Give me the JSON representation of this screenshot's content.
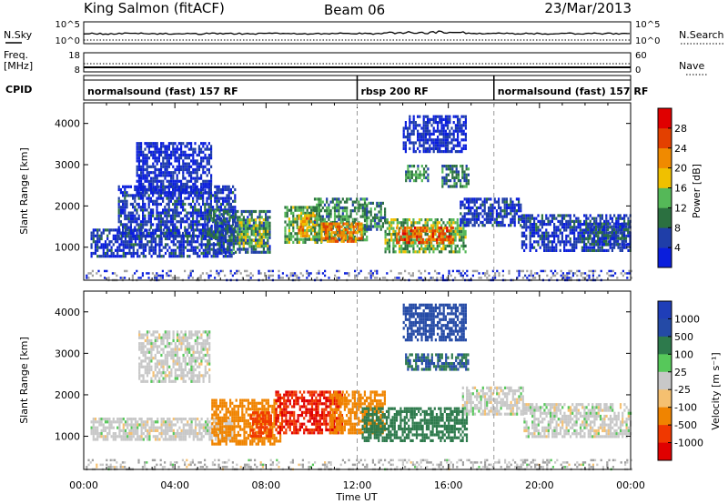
{
  "header": {
    "station": "King Salmon (fitACF)",
    "beam": "Beam 06",
    "date": "23/Mar/2013"
  },
  "top_panels": {
    "nsky_label": "N.Sky",
    "nsky_top_tick": "10^5",
    "nsky_bottom_tick": "10^0",
    "nsearch_label": "N.Search",
    "nsearch_top_tick": "10^5",
    "nsearch_bottom_tick": "10^0",
    "freq_label": "Freq.",
    "freq_unit": "[MHz]",
    "freq_top_tick": "18",
    "freq_bottom_tick": "8",
    "nave_label": "Nave",
    "nave_top_tick": "60",
    "nave_bottom_tick": "0",
    "cpid_label": "CPID"
  },
  "cpid_segments": [
    {
      "label": "normalsound (fast) 157 RF",
      "start_hour": 0
    },
    {
      "label": "rbsp 200 RF",
      "start_hour": 12
    },
    {
      "label": "normalsound (fast) 157 RF",
      "start_hour": 18
    }
  ],
  "colors": {
    "power_scale": [
      "#0a1edc",
      "#1f3ea8",
      "#2b7040",
      "#55b858",
      "#f0c000",
      "#f08a00",
      "#e34000",
      "#e00000"
    ],
    "velocity_scale": [
      "#e00000",
      "#f03800",
      "#f08400",
      "#f5c070",
      "#c8c8c8",
      "#56c85a",
      "#2d7a4c",
      "#244aa6",
      "#1f3eb8"
    ],
    "noise": "#a0a0a0"
  },
  "power_colorbar": {
    "label": "Power [dB]",
    "ticks": [
      "4",
      "8",
      "12",
      "16",
      "20",
      "24",
      "28"
    ]
  },
  "velocity_colorbar": {
    "label": "Velocity [m s⁻¹]",
    "ticks": [
      "-1000",
      "-500",
      "-100",
      "-25",
      "25",
      "100",
      "500",
      "1000"
    ]
  },
  "chart_data": [
    {
      "type": "heatmap",
      "title": "King Salmon (fitACF) Beam 06 23/Mar/2013",
      "xlabel": "",
      "ylabel": "Slant Range [km]",
      "ylim": [
        200,
        4500
      ],
      "xlim_hours": [
        0,
        24
      ],
      "colorbar": "Power [dB]",
      "color_range": [
        2,
        30
      ],
      "yticks": [
        "1000",
        "2000",
        "3000",
        "4000"
      ],
      "regions": [
        {
          "t0": 0.3,
          "t1": 6.6,
          "r0": 800,
          "r1": 1450,
          "value": 6
        },
        {
          "t0": 1.5,
          "t1": 6.6,
          "r0": 1300,
          "r1": 2500,
          "value": 6
        },
        {
          "t0": 2.3,
          "t1": 5.6,
          "r0": 2300,
          "r1": 3550,
          "value": 5
        },
        {
          "t0": 5.4,
          "t1": 8.2,
          "r0": 850,
          "r1": 1900,
          "value": 9
        },
        {
          "t0": 6.8,
          "t1": 8.1,
          "r0": 1000,
          "r1": 1700,
          "value": 15
        },
        {
          "t0": 8.8,
          "t1": 10.4,
          "r0": 1100,
          "r1": 2000,
          "value": 13
        },
        {
          "t0": 9.4,
          "t1": 10.2,
          "r0": 1300,
          "r1": 1800,
          "value": 20
        },
        {
          "t0": 10.1,
          "t1": 12.4,
          "r0": 1200,
          "r1": 2200,
          "value": 12
        },
        {
          "t0": 10.4,
          "t1": 12.2,
          "r0": 1150,
          "r1": 1600,
          "value": 22
        },
        {
          "t0": 12.3,
          "t1": 13.2,
          "r0": 1400,
          "r1": 2100,
          "value": 10
        },
        {
          "t0": 13.2,
          "t1": 16.8,
          "r0": 900,
          "r1": 1700,
          "value": 14
        },
        {
          "t0": 13.7,
          "t1": 16.2,
          "r0": 1100,
          "r1": 1500,
          "value": 24
        },
        {
          "t0": 14.1,
          "t1": 15.1,
          "r0": 2600,
          "r1": 3000,
          "value": 12
        },
        {
          "t0": 15.7,
          "t1": 16.9,
          "r0": 2500,
          "r1": 3000,
          "value": 10
        },
        {
          "t0": 16.5,
          "t1": 19.2,
          "r0": 1500,
          "r1": 2200,
          "value": 6
        },
        {
          "t0": 19.2,
          "t1": 24.0,
          "r0": 900,
          "r1": 1800,
          "value": 6
        },
        {
          "t0": 22.0,
          "t1": 24.0,
          "r0": 1100,
          "r1": 1600,
          "value": 8
        },
        {
          "t0": 14.0,
          "t1": 16.8,
          "r0": 3300,
          "r1": 4200,
          "value": 5
        },
        {
          "t0": 0.0,
          "t1": 24.0,
          "r0": 200,
          "r1": 450,
          "value": 2
        }
      ]
    },
    {
      "type": "heatmap",
      "xlabel": "Time UT",
      "ylabel": "Slant Range [km]",
      "ylim": [
        200,
        4500
      ],
      "xlim_hours": [
        0,
        24
      ],
      "colorbar": "Velocity [m s⁻¹]",
      "xticks": [
        "00:00",
        "04:00",
        "08:00",
        "12:00",
        "16:00",
        "20:00",
        "00:00"
      ],
      "yticks": [
        "1000",
        "2000",
        "3000",
        "4000"
      ],
      "regions": [
        {
          "t0": 0.3,
          "t1": 6.6,
          "r0": 900,
          "r1": 1450,
          "value": 0
        },
        {
          "t0": 2.4,
          "t1": 5.5,
          "r0": 2300,
          "r1": 3550,
          "value": 0
        },
        {
          "t0": 5.6,
          "t1": 8.6,
          "r0": 800,
          "r1": 1900,
          "value": -300
        },
        {
          "t0": 7.3,
          "t1": 8.2,
          "r0": 1000,
          "r1": 1600,
          "value": -600
        },
        {
          "t0": 8.4,
          "t1": 11.3,
          "r0": 1100,
          "r1": 2100,
          "value": -1000
        },
        {
          "t0": 10.8,
          "t1": 13.2,
          "r0": 1100,
          "r1": 2100,
          "value": -300
        },
        {
          "t0": 12.2,
          "t1": 16.8,
          "r0": 900,
          "r1": 1700,
          "value": 250
        },
        {
          "t0": 14.1,
          "t1": 16.9,
          "r0": 2600,
          "r1": 3000,
          "value": 500
        },
        {
          "t0": 16.6,
          "t1": 19.3,
          "r0": 1500,
          "r1": 2200,
          "value": 0
        },
        {
          "t0": 19.3,
          "t1": 24.0,
          "r0": 1000,
          "r1": 1800,
          "value": 0
        },
        {
          "t0": 14.0,
          "t1": 16.8,
          "r0": 3300,
          "r1": 4200,
          "value": 600
        },
        {
          "t0": 0.0,
          "t1": 24.0,
          "r0": 200,
          "r1": 450,
          "value": 0
        }
      ]
    }
  ]
}
